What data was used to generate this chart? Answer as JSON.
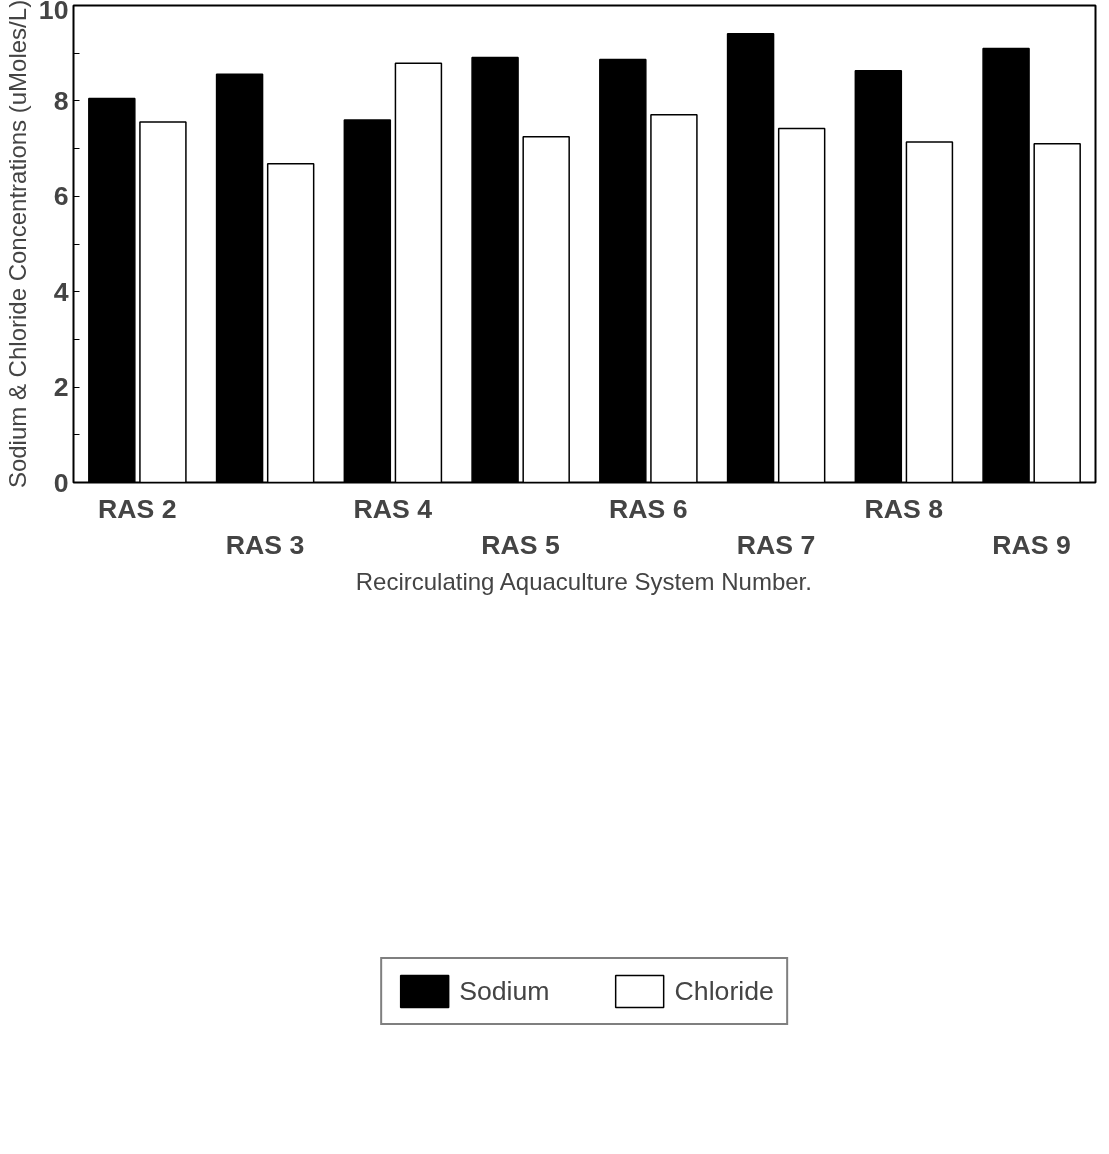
{
  "chart_data": {
    "type": "bar",
    "xlabel": "Recirculating Aquaculture System Number.",
    "ylabel": "Sodium & Chloride Concentrations (uMoles/L)",
    "categories": [
      "RAS 2",
      "RAS 3",
      "RAS 4",
      "RAS 5",
      "RAS 6",
      "RAS 7",
      "RAS 8",
      "RAS 9"
    ],
    "series": [
      {
        "name": "Sodium",
        "color": "#000000",
        "values": [
          8.05,
          8.56,
          7.6,
          8.91,
          8.87,
          9.41,
          8.63,
          9.1
        ]
      },
      {
        "name": "Chloride",
        "color": "#ffffff",
        "values": [
          7.56,
          6.68,
          8.79,
          7.25,
          7.71,
          7.42,
          7.14,
          7.1
        ]
      }
    ],
    "ylim": [
      0,
      10
    ],
    "yticks": [
      0,
      {
        "value": 1,
        "label": null
      },
      2,
      {
        "value": 3,
        "label": null
      },
      4,
      {
        "value": 5,
        "label": null
      },
      6,
      {
        "value": 7,
        "label": null
      },
      8,
      {
        "value": 9,
        "label": null
      },
      10
    ],
    "grid": false,
    "legend": "bottom"
  }
}
